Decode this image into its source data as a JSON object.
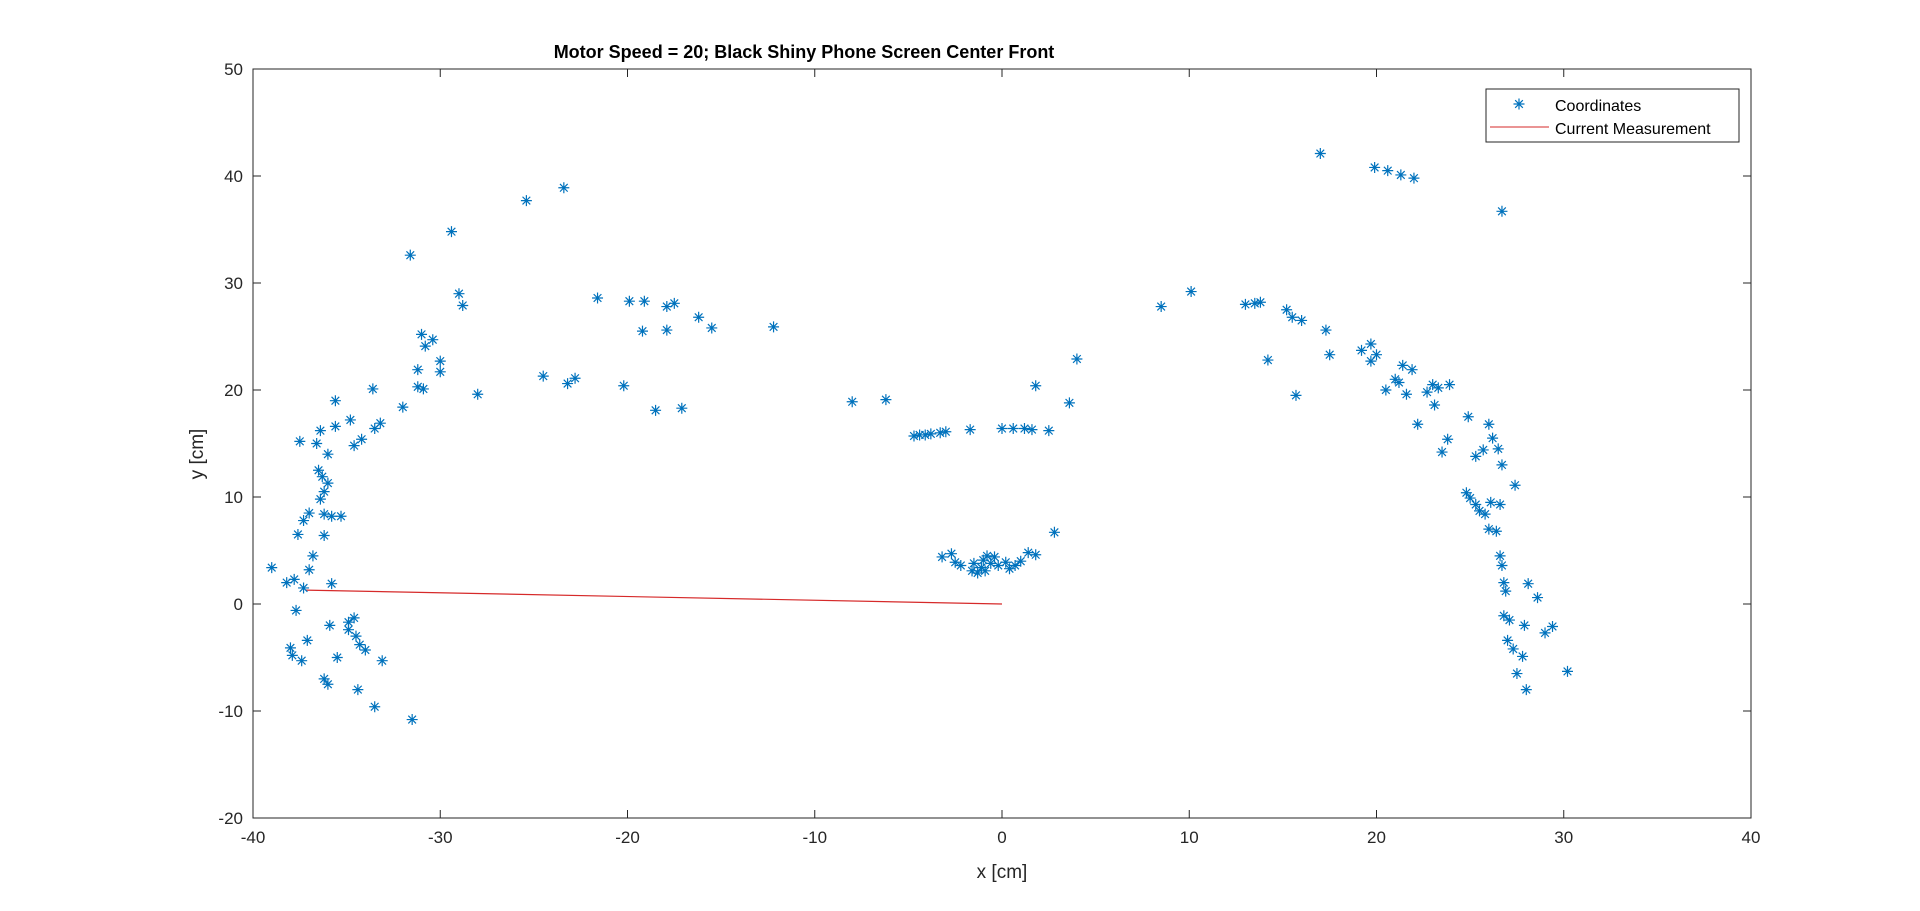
{
  "chart_data": {
    "type": "scatter",
    "title": "Motor Speed = 20; Black Shiny Phone Screen Center Front",
    "xlabel": "x [cm]",
    "ylabel": "y [cm]",
    "xlim": [
      -40,
      40
    ],
    "ylim": [
      -20,
      50
    ],
    "xticks": [
      -40,
      -30,
      -20,
      -10,
      0,
      10,
      20,
      30,
      40
    ],
    "yticks": [
      -20,
      -10,
      0,
      10,
      20,
      30,
      40,
      50
    ],
    "grid": false,
    "legend_position": "top-right",
    "colors": {
      "coordinates": "#0072BD",
      "measurement": "#D62A2A",
      "axes": "#262626"
    },
    "series": [
      {
        "name": "Coordinates",
        "kind": "scatter",
        "marker": "asterisk",
        "points": [
          [
            -39.0,
            3.4
          ],
          [
            -38.2,
            2.0
          ],
          [
            -37.8,
            2.3
          ],
          [
            -37.3,
            1.5
          ],
          [
            -37.0,
            3.2
          ],
          [
            -36.8,
            4.5
          ],
          [
            -37.6,
            6.5
          ],
          [
            -37.3,
            7.8
          ],
          [
            -37.0,
            8.5
          ],
          [
            -36.2,
            6.4
          ],
          [
            -36.2,
            8.4
          ],
          [
            -35.8,
            8.2
          ],
          [
            -35.3,
            8.2
          ],
          [
            -36.4,
            9.8
          ],
          [
            -36.2,
            10.5
          ],
          [
            -36.0,
            11.3
          ],
          [
            -36.3,
            11.9
          ],
          [
            -36.5,
            12.5
          ],
          [
            -36.0,
            14.0
          ],
          [
            -36.6,
            15.0
          ],
          [
            -37.5,
            15.2
          ],
          [
            -36.4,
            16.2
          ],
          [
            -35.6,
            16.6
          ],
          [
            -35.6,
            19.0
          ],
          [
            -34.8,
            17.2
          ],
          [
            -34.6,
            14.8
          ],
          [
            -34.2,
            15.4
          ],
          [
            -33.5,
            16.4
          ],
          [
            -33.2,
            16.9
          ],
          [
            -33.6,
            20.1
          ],
          [
            -32.0,
            18.4
          ],
          [
            -31.2,
            20.3
          ],
          [
            -30.9,
            20.1
          ],
          [
            -31.2,
            21.9
          ],
          [
            -30.0,
            21.7
          ],
          [
            -30.0,
            22.7
          ],
          [
            -30.8,
            24.1
          ],
          [
            -31.0,
            25.2
          ],
          [
            -30.4,
            24.7
          ],
          [
            -31.6,
            32.6
          ],
          [
            -29.4,
            34.8
          ],
          [
            -29.0,
            29.0
          ],
          [
            -28.8,
            27.9
          ],
          [
            -28.0,
            19.6
          ],
          [
            -25.4,
            37.7
          ],
          [
            -23.4,
            38.9
          ],
          [
            -24.5,
            21.3
          ],
          [
            -23.2,
            20.6
          ],
          [
            -22.8,
            21.1
          ],
          [
            -21.6,
            28.6
          ],
          [
            -20.2,
            20.4
          ],
          [
            -19.9,
            28.3
          ],
          [
            -19.1,
            28.3
          ],
          [
            -19.2,
            25.5
          ],
          [
            -18.5,
            18.1
          ],
          [
            -17.9,
            25.6
          ],
          [
            -17.9,
            27.8
          ],
          [
            -17.5,
            28.1
          ],
          [
            -16.2,
            26.8
          ],
          [
            -15.5,
            25.8
          ],
          [
            -17.1,
            18.3
          ],
          [
            -12.2,
            25.9
          ],
          [
            -8.0,
            18.9
          ],
          [
            -6.2,
            19.1
          ],
          [
            -4.7,
            15.7
          ],
          [
            -4.4,
            15.8
          ],
          [
            -4.1,
            15.8
          ],
          [
            -3.8,
            15.9
          ],
          [
            -3.3,
            16.0
          ],
          [
            -3.0,
            16.1
          ],
          [
            -1.7,
            16.3
          ],
          [
            0.0,
            16.4
          ],
          [
            0.6,
            16.4
          ],
          [
            1.2,
            16.4
          ],
          [
            1.6,
            16.3
          ],
          [
            2.5,
            16.2
          ],
          [
            1.8,
            20.4
          ],
          [
            3.6,
            18.8
          ],
          [
            4.0,
            22.9
          ],
          [
            -3.2,
            4.4
          ],
          [
            -2.7,
            4.7
          ],
          [
            -2.5,
            3.9
          ],
          [
            -2.2,
            3.6
          ],
          [
            -1.6,
            3.1
          ],
          [
            -1.3,
            2.9
          ],
          [
            -1.1,
            3.4
          ],
          [
            -1.0,
            4.1
          ],
          [
            -0.8,
            4.5
          ],
          [
            -0.6,
            3.8
          ],
          [
            -0.4,
            4.4
          ],
          [
            -0.2,
            3.6
          ],
          [
            0.2,
            3.9
          ],
          [
            0.4,
            3.3
          ],
          [
            0.7,
            3.6
          ],
          [
            1.0,
            4.0
          ],
          [
            1.4,
            4.8
          ],
          [
            1.8,
            4.6
          ],
          [
            2.8,
            6.7
          ],
          [
            -1.5,
            3.8
          ],
          [
            -0.9,
            3.1
          ],
          [
            -38.0,
            -4.1
          ],
          [
            -37.7,
            -0.6
          ],
          [
            -37.1,
            -3.4
          ],
          [
            -37.4,
            -5.3
          ],
          [
            -36.2,
            -7.0
          ],
          [
            -36.0,
            -7.5
          ],
          [
            -35.9,
            -2.0
          ],
          [
            -35.5,
            -5.0
          ],
          [
            -34.9,
            -1.7
          ],
          [
            -34.6,
            -1.3
          ],
          [
            -34.5,
            -3.0
          ],
          [
            -34.3,
            -3.8
          ],
          [
            -34.0,
            -4.3
          ],
          [
            -34.4,
            -8.0
          ],
          [
            -33.5,
            -9.6
          ],
          [
            -33.1,
            -5.3
          ],
          [
            -31.5,
            -10.8
          ],
          [
            -35.8,
            1.9
          ],
          [
            -37.9,
            -4.8
          ],
          [
            -34.9,
            -2.4
          ],
          [
            8.5,
            27.8
          ],
          [
            10.1,
            29.2
          ],
          [
            13.0,
            28.0
          ],
          [
            13.5,
            28.1
          ],
          [
            13.8,
            28.2
          ],
          [
            14.2,
            22.8
          ],
          [
            15.2,
            27.5
          ],
          [
            15.5,
            26.8
          ],
          [
            16.0,
            26.5
          ],
          [
            15.7,
            19.5
          ],
          [
            17.0,
            42.1
          ],
          [
            17.3,
            25.6
          ],
          [
            17.5,
            23.3
          ],
          [
            19.2,
            23.7
          ],
          [
            19.7,
            24.3
          ],
          [
            19.7,
            22.7
          ],
          [
            20.0,
            23.3
          ],
          [
            20.5,
            20.0
          ],
          [
            21.0,
            21.0
          ],
          [
            21.2,
            20.7
          ],
          [
            21.4,
            22.3
          ],
          [
            21.6,
            19.6
          ],
          [
            21.9,
            21.9
          ],
          [
            19.9,
            40.8
          ],
          [
            20.6,
            40.5
          ],
          [
            21.3,
            40.1
          ],
          [
            22.0,
            39.8
          ],
          [
            22.2,
            16.8
          ],
          [
            22.7,
            19.8
          ],
          [
            23.0,
            20.5
          ],
          [
            23.3,
            20.2
          ],
          [
            23.9,
            20.5
          ],
          [
            23.1,
            18.6
          ],
          [
            23.5,
            14.2
          ],
          [
            23.8,
            15.4
          ],
          [
            24.9,
            17.5
          ],
          [
            25.3,
            13.8
          ],
          [
            25.7,
            14.4
          ],
          [
            26.0,
            16.8
          ],
          [
            26.2,
            15.5
          ],
          [
            26.5,
            14.5
          ],
          [
            26.7,
            13.0
          ],
          [
            24.8,
            10.4
          ],
          [
            25.0,
            9.9
          ],
          [
            25.3,
            9.3
          ],
          [
            25.5,
            8.7
          ],
          [
            25.8,
            8.4
          ],
          [
            26.1,
            9.5
          ],
          [
            26.0,
            7.0
          ],
          [
            26.4,
            6.8
          ],
          [
            26.6,
            4.5
          ],
          [
            26.7,
            3.6
          ],
          [
            26.8,
            2.0
          ],
          [
            26.9,
            1.2
          ],
          [
            26.6,
            9.3
          ],
          [
            26.7,
            36.7
          ],
          [
            27.4,
            11.1
          ],
          [
            26.8,
            -1.1
          ],
          [
            27.1,
            -1.5
          ],
          [
            27.0,
            -3.4
          ],
          [
            27.3,
            -4.2
          ],
          [
            27.5,
            -6.5
          ],
          [
            27.8,
            -4.9
          ],
          [
            28.0,
            -8.0
          ],
          [
            27.9,
            -2.0
          ],
          [
            28.1,
            1.9
          ],
          [
            28.6,
            0.6
          ],
          [
            29.0,
            -2.7
          ],
          [
            29.4,
            -2.1
          ],
          [
            30.2,
            -6.3
          ]
        ]
      },
      {
        "name": "Current Measurement",
        "kind": "line",
        "points": [
          [
            0.0,
            0.0
          ],
          [
            -37.2,
            1.3
          ]
        ]
      }
    ]
  }
}
